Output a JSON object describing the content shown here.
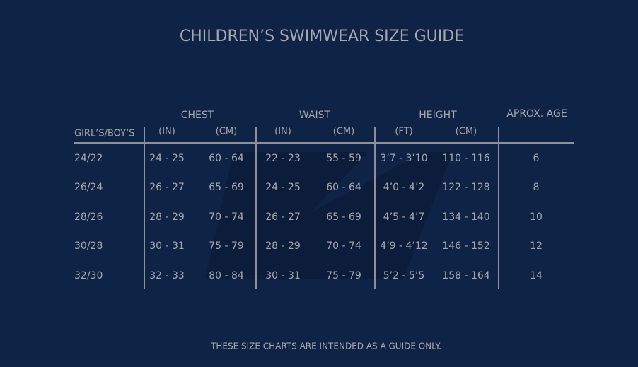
{
  "title": "CHILDREN’S SWIMWEAR SIZE GUIDE",
  "table": {
    "size_label": "GIRL’S/BOY’S",
    "groups": [
      "CHEST",
      "WAIST",
      "HEIGHT",
      "APROX. AGE"
    ],
    "units": [
      "(IN)",
      "(CM)",
      "(IN)",
      "(CM)",
      "(FT)",
      "(CM)"
    ],
    "rows": [
      [
        "24/22",
        "24 - 25",
        "60 - 64",
        "22 - 23",
        "55 - 59",
        "3’7 - 3’10",
        "110 - 116",
        "6"
      ],
      [
        "26/24",
        "26 - 27",
        "65 - 69",
        "24 - 25",
        "60 - 64",
        "4’0 - 4’2",
        "122 - 128",
        "8"
      ],
      [
        "28/26",
        "28 - 29",
        "70 - 74",
        "26 - 27",
        "65 - 69",
        "4’5 - 4’7",
        "134 - 140",
        "10"
      ],
      [
        "30/28",
        "30 - 31",
        "75 - 79",
        "28 - 29",
        "70 - 74",
        "4’9 - 4’12",
        "146 - 152",
        "12"
      ],
      [
        "32/30",
        "32 - 33",
        "80 - 84",
        "30 - 31",
        "75 - 79",
        "5’2 - 5’5",
        "158 - 164",
        "14"
      ]
    ]
  },
  "footnote": "THESE SIZE CHARTS ARE INTENDED AS A GUIDE ONLY."
}
